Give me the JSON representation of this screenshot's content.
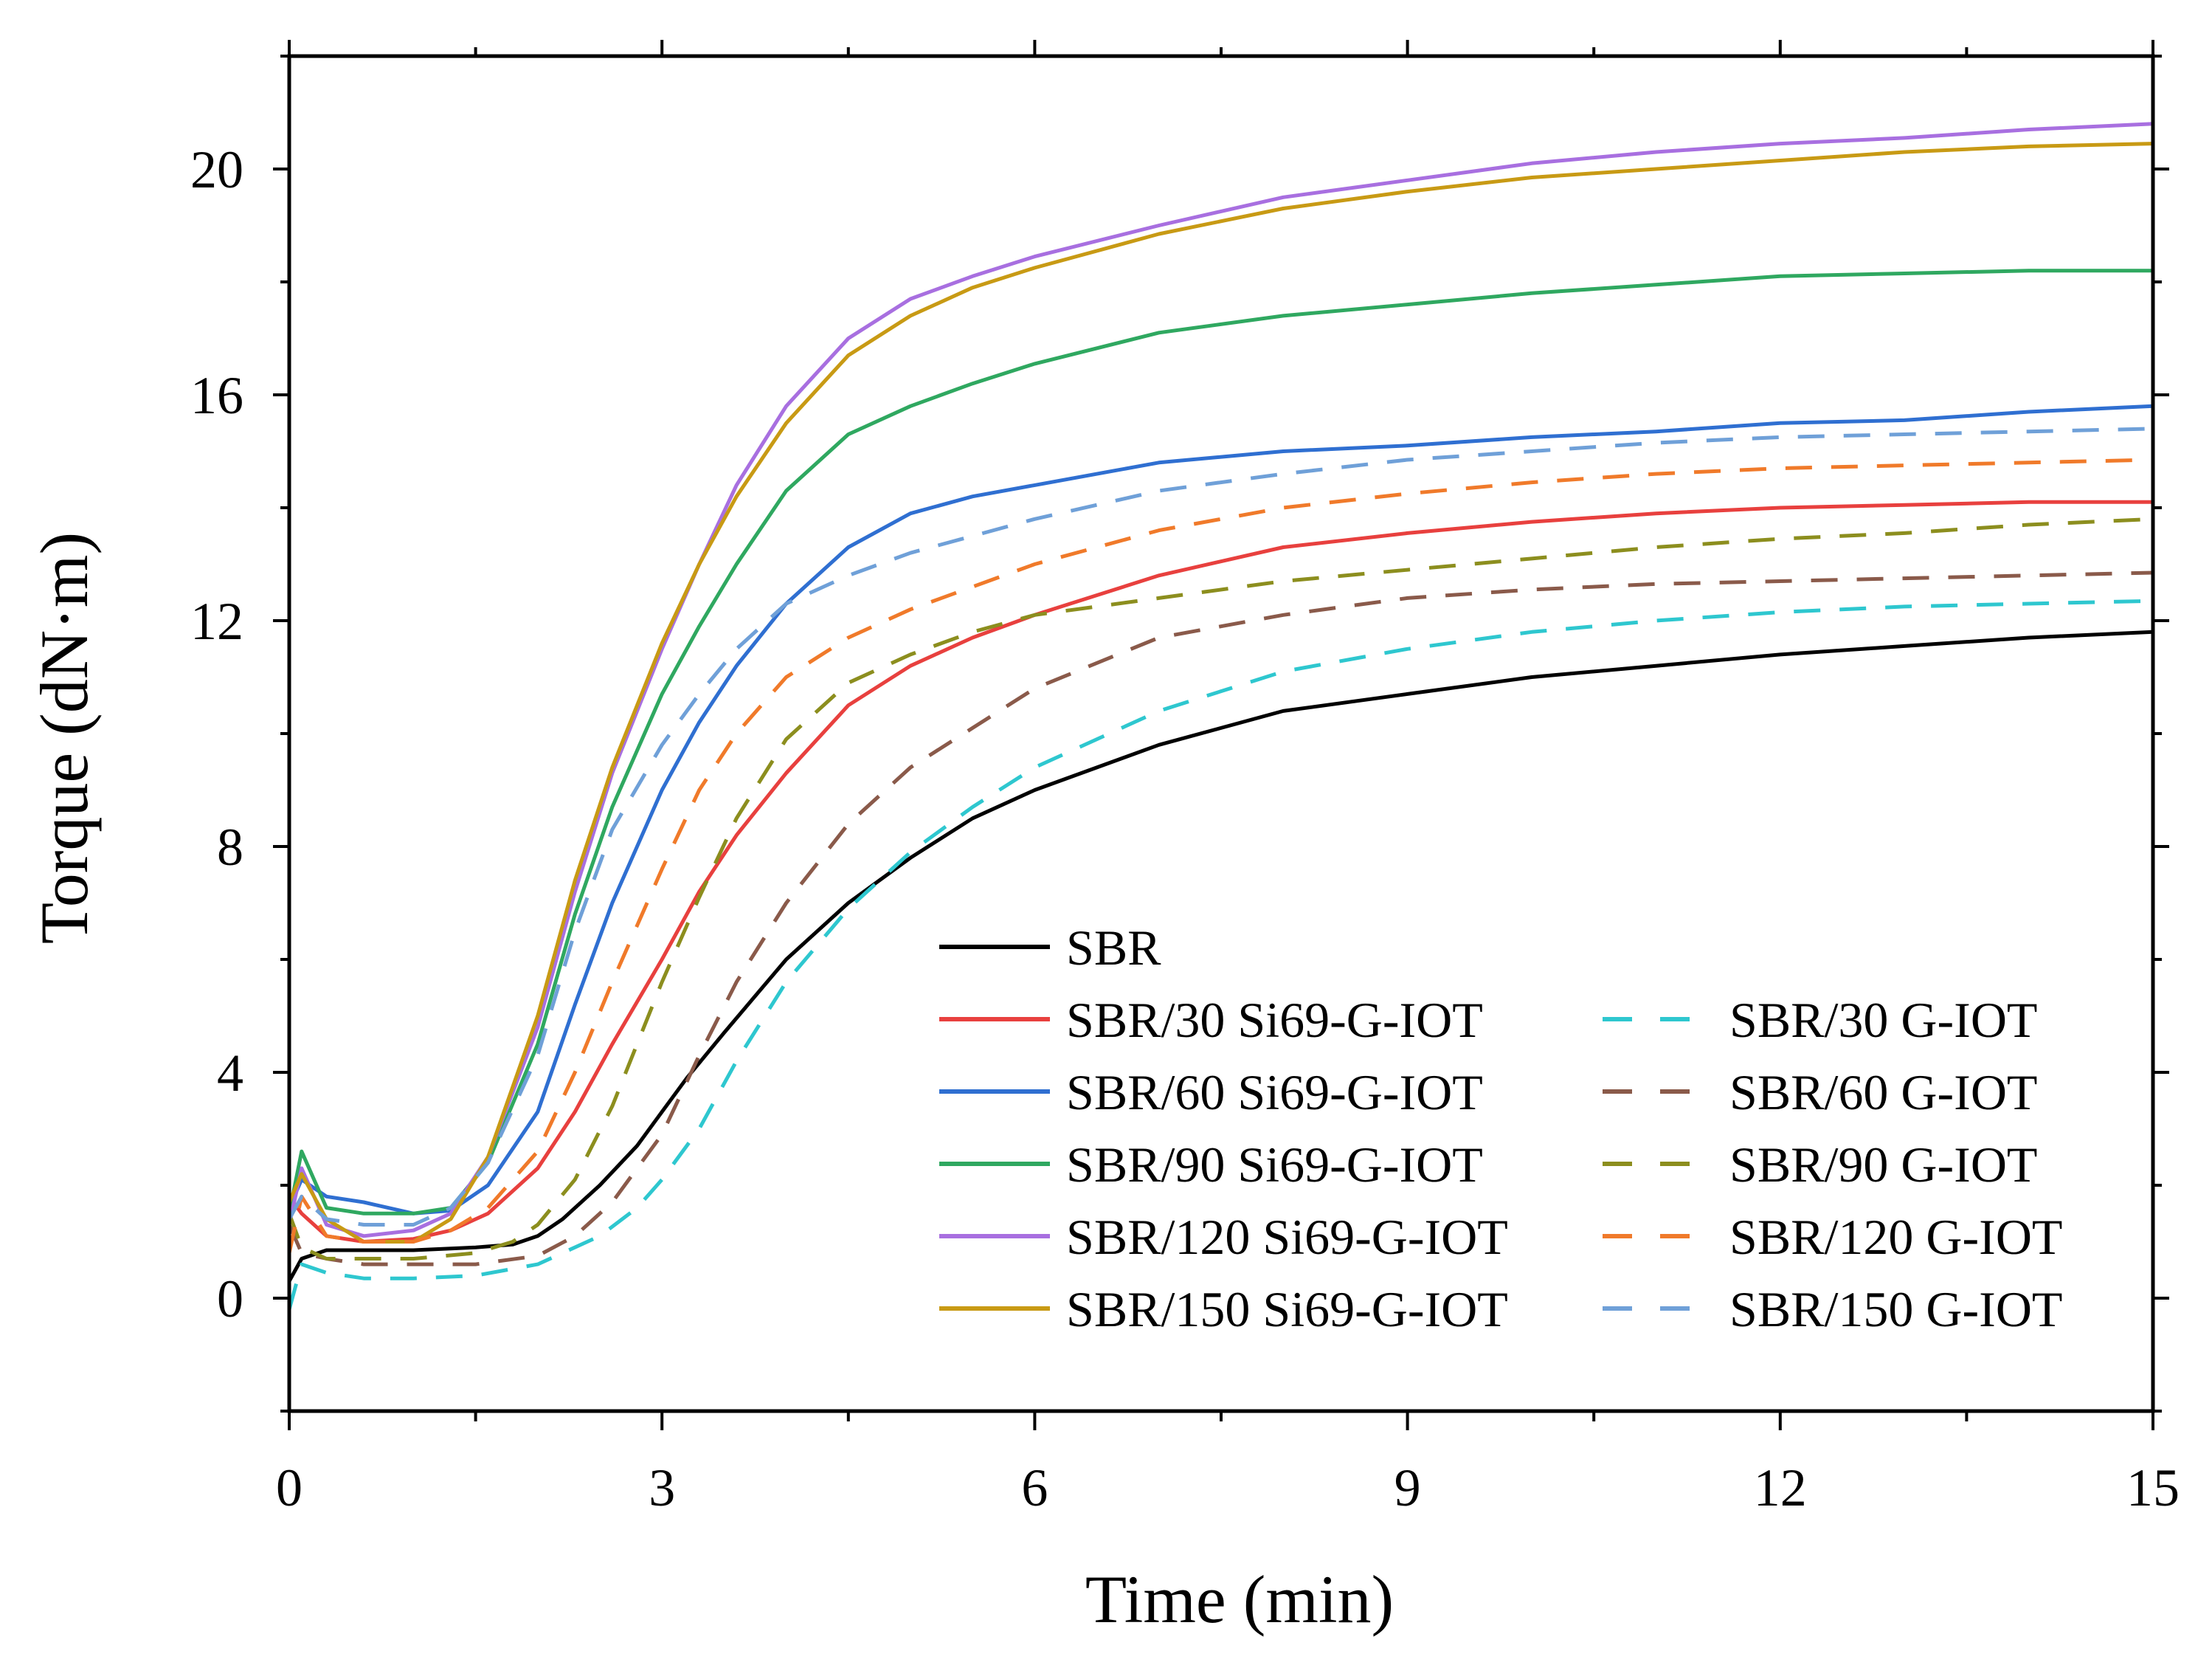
{
  "chart_data": {
    "type": "line",
    "xlabel": "Time (min)",
    "ylabel": "Torque (dN·m)",
    "xlim": [
      0,
      15
    ],
    "ylim": [
      -2,
      22
    ],
    "xticks": [
      0,
      3,
      6,
      9,
      12,
      15
    ],
    "yticks": [
      0,
      4,
      8,
      12,
      16,
      20
    ],
    "xtick_labels": [
      "0",
      "3",
      "6",
      "9",
      "12",
      "15"
    ],
    "ytick_labels": [
      "0",
      "4",
      "8",
      "12",
      "16",
      "20"
    ],
    "grid": false,
    "legend_position": "bottom-right",
    "series": [
      {
        "name": "SBR",
        "color": "#000000",
        "style": "solid",
        "points": [
          [
            0,
            0.3
          ],
          [
            0.1,
            0.7
          ],
          [
            0.3,
            0.85
          ],
          [
            0.6,
            0.85
          ],
          [
            1.0,
            0.85
          ],
          [
            1.5,
            0.9
          ],
          [
            1.8,
            0.95
          ],
          [
            2.0,
            1.1
          ],
          [
            2.2,
            1.4
          ],
          [
            2.5,
            2.0
          ],
          [
            2.8,
            2.7
          ],
          [
            3.0,
            3.3
          ],
          [
            3.2,
            3.9
          ],
          [
            3.5,
            4.7
          ],
          [
            4.0,
            6.0
          ],
          [
            4.5,
            7.0
          ],
          [
            5.0,
            7.8
          ],
          [
            5.5,
            8.5
          ],
          [
            6.0,
            9.0
          ],
          [
            7.0,
            9.8
          ],
          [
            8.0,
            10.4
          ],
          [
            9.0,
            10.7
          ],
          [
            10.0,
            11.0
          ],
          [
            11.0,
            11.2
          ],
          [
            12.0,
            11.4
          ],
          [
            13.0,
            11.55
          ],
          [
            14.0,
            11.7
          ],
          [
            15.0,
            11.8
          ]
        ]
      },
      {
        "name": "SBR/30 Si69-G-IOT",
        "color": "#e8403e",
        "style": "solid",
        "points": [
          [
            0,
            1.8
          ],
          [
            0.1,
            1.5
          ],
          [
            0.3,
            1.1
          ],
          [
            0.6,
            1.0
          ],
          [
            1.0,
            1.05
          ],
          [
            1.3,
            1.2
          ],
          [
            1.6,
            1.5
          ],
          [
            2.0,
            2.3
          ],
          [
            2.3,
            3.3
          ],
          [
            2.6,
            4.5
          ],
          [
            3.0,
            6.0
          ],
          [
            3.3,
            7.2
          ],
          [
            3.6,
            8.2
          ],
          [
            4.0,
            9.3
          ],
          [
            4.5,
            10.5
          ],
          [
            5.0,
            11.2
          ],
          [
            5.5,
            11.7
          ],
          [
            6.0,
            12.1
          ],
          [
            7.0,
            12.8
          ],
          [
            8.0,
            13.3
          ],
          [
            9.0,
            13.55
          ],
          [
            10.0,
            13.75
          ],
          [
            11.0,
            13.9
          ],
          [
            12.0,
            14.0
          ],
          [
            13.0,
            14.05
          ],
          [
            14.0,
            14.1
          ],
          [
            15.0,
            14.1
          ]
        ]
      },
      {
        "name": "SBR/60 Si69-G-IOT",
        "color": "#2f6fd1",
        "style": "solid",
        "points": [
          [
            0,
            1.6
          ],
          [
            0.1,
            2.1
          ],
          [
            0.3,
            1.8
          ],
          [
            0.6,
            1.7
          ],
          [
            1.0,
            1.5
          ],
          [
            1.3,
            1.55
          ],
          [
            1.6,
            2.0
          ],
          [
            2.0,
            3.3
          ],
          [
            2.3,
            5.2
          ],
          [
            2.6,
            7.0
          ],
          [
            3.0,
            9.0
          ],
          [
            3.3,
            10.2
          ],
          [
            3.6,
            11.2
          ],
          [
            4.0,
            12.3
          ],
          [
            4.5,
            13.3
          ],
          [
            5.0,
            13.9
          ],
          [
            5.5,
            14.2
          ],
          [
            6.0,
            14.4
          ],
          [
            7.0,
            14.8
          ],
          [
            8.0,
            15.0
          ],
          [
            9.0,
            15.1
          ],
          [
            10.0,
            15.25
          ],
          [
            11.0,
            15.35
          ],
          [
            12.0,
            15.5
          ],
          [
            13.0,
            15.55
          ],
          [
            14.0,
            15.7
          ],
          [
            15.0,
            15.8
          ]
        ]
      },
      {
        "name": "SBR/90 Si69-G-IOT",
        "color": "#2fa860",
        "style": "solid",
        "points": [
          [
            0,
            1.5
          ],
          [
            0.1,
            2.6
          ],
          [
            0.3,
            1.6
          ],
          [
            0.6,
            1.5
          ],
          [
            1.0,
            1.5
          ],
          [
            1.3,
            1.6
          ],
          [
            1.6,
            2.4
          ],
          [
            2.0,
            4.5
          ],
          [
            2.3,
            6.8
          ],
          [
            2.6,
            8.7
          ],
          [
            3.0,
            10.7
          ],
          [
            3.3,
            11.9
          ],
          [
            3.6,
            13.0
          ],
          [
            4.0,
            14.3
          ],
          [
            4.5,
            15.3
          ],
          [
            5.0,
            15.8
          ],
          [
            5.5,
            16.2
          ],
          [
            6.0,
            16.55
          ],
          [
            7.0,
            17.1
          ],
          [
            8.0,
            17.4
          ],
          [
            9.0,
            17.6
          ],
          [
            10.0,
            17.8
          ],
          [
            11.0,
            17.95
          ],
          [
            12.0,
            18.1
          ],
          [
            13.0,
            18.15
          ],
          [
            14.0,
            18.2
          ],
          [
            15.0,
            18.2
          ]
        ]
      },
      {
        "name": "SBR/120 Si69-G-IOT",
        "color": "#a86fe0",
        "style": "solid",
        "points": [
          [
            0,
            1.3
          ],
          [
            0.1,
            2.3
          ],
          [
            0.3,
            1.3
          ],
          [
            0.6,
            1.1
          ],
          [
            1.0,
            1.2
          ],
          [
            1.3,
            1.5
          ],
          [
            1.6,
            2.5
          ],
          [
            2.0,
            4.8
          ],
          [
            2.3,
            7.2
          ],
          [
            2.6,
            9.3
          ],
          [
            3.0,
            11.5
          ],
          [
            3.3,
            13.0
          ],
          [
            3.6,
            14.4
          ],
          [
            4.0,
            15.8
          ],
          [
            4.5,
            17.0
          ],
          [
            5.0,
            17.7
          ],
          [
            5.5,
            18.1
          ],
          [
            6.0,
            18.45
          ],
          [
            7.0,
            19.0
          ],
          [
            8.0,
            19.5
          ],
          [
            9.0,
            19.8
          ],
          [
            10.0,
            20.1
          ],
          [
            11.0,
            20.3
          ],
          [
            12.0,
            20.45
          ],
          [
            13.0,
            20.55
          ],
          [
            14.0,
            20.7
          ],
          [
            15.0,
            20.8
          ]
        ]
      },
      {
        "name": "SBR/150 Si69-G-IOT",
        "color": "#c89a14",
        "style": "solid",
        "points": [
          [
            0,
            1.7
          ],
          [
            0.1,
            2.2
          ],
          [
            0.3,
            1.4
          ],
          [
            0.6,
            1.0
          ],
          [
            1.0,
            1.0
          ],
          [
            1.3,
            1.4
          ],
          [
            1.6,
            2.5
          ],
          [
            2.0,
            5.0
          ],
          [
            2.3,
            7.4
          ],
          [
            2.6,
            9.4
          ],
          [
            3.0,
            11.6
          ],
          [
            3.3,
            13.0
          ],
          [
            3.6,
            14.2
          ],
          [
            4.0,
            15.5
          ],
          [
            4.5,
            16.7
          ],
          [
            5.0,
            17.4
          ],
          [
            5.5,
            17.9
          ],
          [
            6.0,
            18.25
          ],
          [
            7.0,
            18.85
          ],
          [
            8.0,
            19.3
          ],
          [
            9.0,
            19.6
          ],
          [
            10.0,
            19.85
          ],
          [
            11.0,
            20.0
          ],
          [
            12.0,
            20.15
          ],
          [
            13.0,
            20.3
          ],
          [
            14.0,
            20.4
          ],
          [
            15.0,
            20.45
          ]
        ]
      },
      {
        "name": "SBR/30 G-IOT",
        "color": "#2ec7cf",
        "style": "dashed",
        "points": [
          [
            0,
            -0.2
          ],
          [
            0.1,
            0.6
          ],
          [
            0.3,
            0.45
          ],
          [
            0.6,
            0.35
          ],
          [
            1.0,
            0.35
          ],
          [
            1.5,
            0.4
          ],
          [
            2.0,
            0.6
          ],
          [
            2.5,
            1.1
          ],
          [
            2.8,
            1.6
          ],
          [
            3.0,
            2.1
          ],
          [
            3.3,
            3.0
          ],
          [
            3.6,
            4.2
          ],
          [
            4.0,
            5.6
          ],
          [
            4.5,
            6.9
          ],
          [
            5.0,
            7.9
          ],
          [
            5.5,
            8.7
          ],
          [
            6.0,
            9.4
          ],
          [
            7.0,
            10.4
          ],
          [
            8.0,
            11.1
          ],
          [
            9.0,
            11.5
          ],
          [
            10.0,
            11.8
          ],
          [
            11.0,
            12.0
          ],
          [
            12.0,
            12.15
          ],
          [
            13.0,
            12.25
          ],
          [
            14.0,
            12.3
          ],
          [
            15.0,
            12.35
          ]
        ]
      },
      {
        "name": "SBR/60 G-IOT",
        "color": "#8a5a4a",
        "style": "dashed",
        "points": [
          [
            0,
            1.3
          ],
          [
            0.1,
            0.8
          ],
          [
            0.3,
            0.7
          ],
          [
            0.6,
            0.6
          ],
          [
            1.0,
            0.6
          ],
          [
            1.5,
            0.6
          ],
          [
            2.0,
            0.75
          ],
          [
            2.3,
            1.1
          ],
          [
            2.6,
            1.7
          ],
          [
            3.0,
            2.9
          ],
          [
            3.3,
            4.3
          ],
          [
            3.6,
            5.6
          ],
          [
            4.0,
            7.0
          ],
          [
            4.5,
            8.4
          ],
          [
            5.0,
            9.4
          ],
          [
            5.5,
            10.1
          ],
          [
            6.0,
            10.8
          ],
          [
            7.0,
            11.7
          ],
          [
            8.0,
            12.1
          ],
          [
            9.0,
            12.4
          ],
          [
            10.0,
            12.55
          ],
          [
            11.0,
            12.65
          ],
          [
            12.0,
            12.7
          ],
          [
            13.0,
            12.75
          ],
          [
            14.0,
            12.8
          ],
          [
            15.0,
            12.85
          ]
        ]
      },
      {
        "name": "SBR/90 G-IOT",
        "color": "#8c8e1e",
        "style": "dashed",
        "points": [
          [
            0,
            1.5
          ],
          [
            0.1,
            0.9
          ],
          [
            0.3,
            0.7
          ],
          [
            0.6,
            0.7
          ],
          [
            1.0,
            0.7
          ],
          [
            1.5,
            0.8
          ],
          [
            1.8,
            1.0
          ],
          [
            2.0,
            1.3
          ],
          [
            2.3,
            2.1
          ],
          [
            2.6,
            3.4
          ],
          [
            3.0,
            5.6
          ],
          [
            3.3,
            7.1
          ],
          [
            3.6,
            8.5
          ],
          [
            4.0,
            9.9
          ],
          [
            4.5,
            10.9
          ],
          [
            5.0,
            11.4
          ],
          [
            5.5,
            11.8
          ],
          [
            6.0,
            12.1
          ],
          [
            7.0,
            12.4
          ],
          [
            8.0,
            12.7
          ],
          [
            9.0,
            12.9
          ],
          [
            10.0,
            13.1
          ],
          [
            11.0,
            13.3
          ],
          [
            12.0,
            13.45
          ],
          [
            13.0,
            13.55
          ],
          [
            14.0,
            13.7
          ],
          [
            15.0,
            13.8
          ]
        ]
      },
      {
        "name": "SBR/120 G-IOT",
        "color": "#f07a2a",
        "style": "dashed",
        "points": [
          [
            0,
            0.8
          ],
          [
            0.1,
            1.8
          ],
          [
            0.3,
            1.1
          ],
          [
            0.6,
            1.0
          ],
          [
            1.0,
            1.0
          ],
          [
            1.3,
            1.2
          ],
          [
            1.6,
            1.6
          ],
          [
            2.0,
            2.6
          ],
          [
            2.3,
            4.0
          ],
          [
            2.6,
            5.6
          ],
          [
            3.0,
            7.6
          ],
          [
            3.3,
            9.0
          ],
          [
            3.6,
            10.0
          ],
          [
            4.0,
            11.0
          ],
          [
            4.5,
            11.7
          ],
          [
            5.0,
            12.2
          ],
          [
            5.5,
            12.6
          ],
          [
            6.0,
            13.0
          ],
          [
            7.0,
            13.6
          ],
          [
            8.0,
            14.0
          ],
          [
            9.0,
            14.25
          ],
          [
            10.0,
            14.45
          ],
          [
            11.0,
            14.6
          ],
          [
            12.0,
            14.7
          ],
          [
            13.0,
            14.75
          ],
          [
            14.0,
            14.8
          ],
          [
            15.0,
            14.85
          ]
        ]
      },
      {
        "name": "SBR/150 G-IOT",
        "color": "#6fa0d8",
        "style": "dashed",
        "points": [
          [
            0,
            1.4
          ],
          [
            0.1,
            1.8
          ],
          [
            0.3,
            1.4
          ],
          [
            0.6,
            1.3
          ],
          [
            1.0,
            1.3
          ],
          [
            1.3,
            1.6
          ],
          [
            1.6,
            2.4
          ],
          [
            2.0,
            4.3
          ],
          [
            2.3,
            6.5
          ],
          [
            2.6,
            8.3
          ],
          [
            3.0,
            9.8
          ],
          [
            3.3,
            10.7
          ],
          [
            3.6,
            11.5
          ],
          [
            4.0,
            12.3
          ],
          [
            4.5,
            12.8
          ],
          [
            5.0,
            13.2
          ],
          [
            5.5,
            13.5
          ],
          [
            6.0,
            13.8
          ],
          [
            7.0,
            14.3
          ],
          [
            8.0,
            14.6
          ],
          [
            9.0,
            14.85
          ],
          [
            10.0,
            15.0
          ],
          [
            11.0,
            15.15
          ],
          [
            12.0,
            15.25
          ],
          [
            13.0,
            15.3
          ],
          [
            14.0,
            15.35
          ],
          [
            15.0,
            15.4
          ]
        ]
      }
    ]
  }
}
